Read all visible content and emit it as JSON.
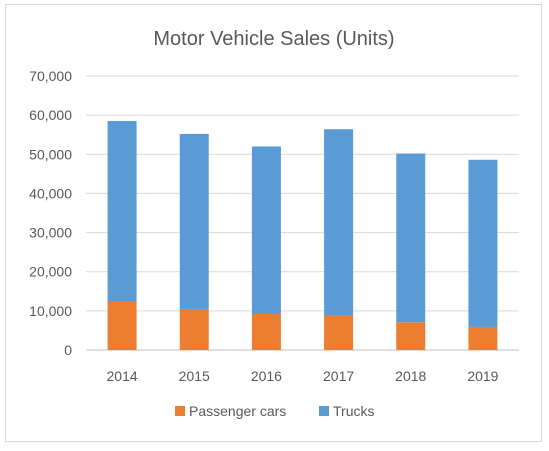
{
  "chart_data": {
    "type": "bar",
    "stacked": true,
    "title": "Motor Vehicle Sales (Units)",
    "xlabel": "",
    "ylabel": "",
    "categories": [
      "2014",
      "2015",
      "2016",
      "2017",
      "2018",
      "2019"
    ],
    "series": [
      {
        "name": "Passenger cars",
        "color": "#ed7d31",
        "values": [
          12400,
          10500,
          9200,
          8800,
          7100,
          5900
        ]
      },
      {
        "name": "Trucks",
        "color": "#5b9bd5",
        "values": [
          46100,
          44700,
          42800,
          47600,
          43100,
          42700
        ]
      }
    ],
    "ylim": [
      0,
      70000
    ],
    "yticks": [
      "0",
      "10,000",
      "20,000",
      "30,000",
      "40,000",
      "50,000",
      "60,000",
      "70,000"
    ],
    "ytick_values": [
      0,
      10000,
      20000,
      30000,
      40000,
      50000,
      60000,
      70000
    ],
    "grid": true,
    "legend_position": "bottom"
  }
}
